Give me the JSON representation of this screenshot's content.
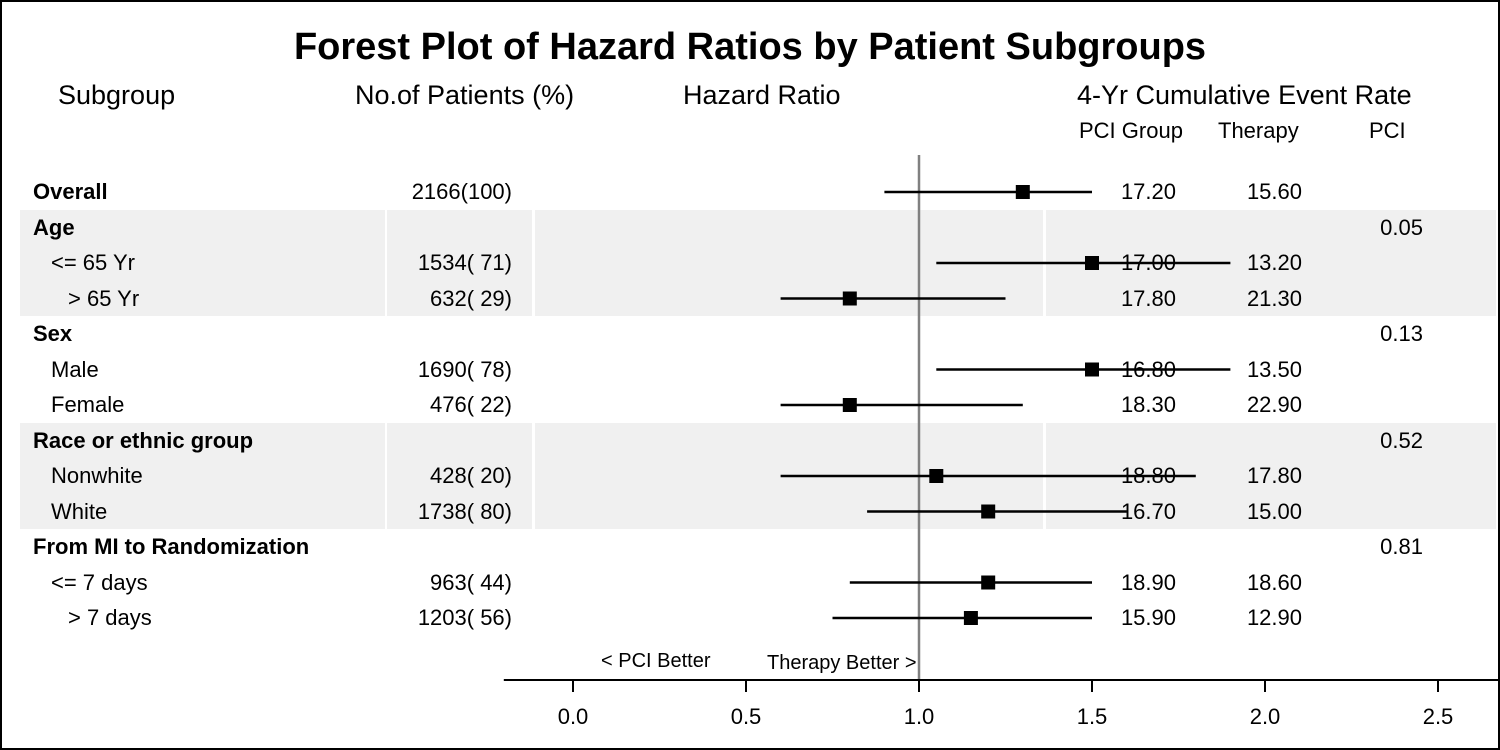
{
  "title": "Forest Plot of Hazard Ratios by Patient Subgroups",
  "headers": {
    "subgroup": "Subgroup",
    "patients": "No.of Patients (%)",
    "hazard_ratio": "Hazard Ratio",
    "event_rate": "4-Yr Cumulative Event Rate",
    "pci_group": "PCI Group",
    "therapy": "Therapy",
    "pci": "PCI"
  },
  "chart_data": {
    "type": "forest",
    "title": "Forest Plot of Hazard Ratios by Patient Subgroups",
    "xlabel": "",
    "ylabel": "",
    "xlim": [
      -0.2,
      2.75
    ],
    "xticks": [
      "0.0",
      "0.5",
      "1.0",
      "1.5",
      "2.0",
      "2.5"
    ],
    "reference_line": 1.0,
    "annotations": {
      "left": "< PCI Better",
      "right": "Therapy Better >"
    },
    "rows": [
      {
        "label": "Overall",
        "indent": 0,
        "bold": true,
        "band": false,
        "patients": "2166(100)",
        "hr": 1.3,
        "low": 0.9,
        "high": 1.5,
        "pci_group": "17.20",
        "therapy": "15.60",
        "pci": ""
      },
      {
        "label": "Age",
        "indent": 0,
        "bold": true,
        "band": true,
        "patients": "",
        "hr": null,
        "low": null,
        "high": null,
        "pci_group": "",
        "therapy": "",
        "pci": "0.05"
      },
      {
        "label": "<= 65 Yr",
        "indent": 1,
        "bold": false,
        "band": true,
        "patients": "1534( 71)",
        "hr": 1.5,
        "low": 1.05,
        "high": 1.9,
        "pci_group": "17.00",
        "therapy": "13.20",
        "pci": ""
      },
      {
        "label": "> 65 Yr",
        "indent": 2,
        "bold": false,
        "band": true,
        "patients": "632( 29)",
        "hr": 0.8,
        "low": 0.6,
        "high": 1.25,
        "pci_group": "17.80",
        "therapy": "21.30",
        "pci": ""
      },
      {
        "label": "Sex",
        "indent": 0,
        "bold": true,
        "band": false,
        "patients": "",
        "hr": null,
        "low": null,
        "high": null,
        "pci_group": "",
        "therapy": "",
        "pci": "0.13"
      },
      {
        "label": "Male",
        "indent": 1,
        "bold": false,
        "band": false,
        "patients": "1690( 78)",
        "hr": 1.5,
        "low": 1.05,
        "high": 1.9,
        "pci_group": "16.80",
        "therapy": "13.50",
        "pci": ""
      },
      {
        "label": "Female",
        "indent": 1,
        "bold": false,
        "band": false,
        "patients": "476( 22)",
        "hr": 0.8,
        "low": 0.6,
        "high": 1.3,
        "pci_group": "18.30",
        "therapy": "22.90",
        "pci": ""
      },
      {
        "label": "Race or ethnic group",
        "indent": 0,
        "bold": true,
        "band": true,
        "patients": "",
        "hr": null,
        "low": null,
        "high": null,
        "pci_group": "",
        "therapy": "",
        "pci": "0.52"
      },
      {
        "label": "Nonwhite",
        "indent": 1,
        "bold": false,
        "band": true,
        "patients": "428( 20)",
        "hr": 1.05,
        "low": 0.6,
        "high": 1.8,
        "pci_group": "18.80",
        "therapy": "17.80",
        "pci": ""
      },
      {
        "label": "White",
        "indent": 1,
        "bold": false,
        "band": true,
        "patients": "1738( 80)",
        "hr": 1.2,
        "low": 0.85,
        "high": 1.6,
        "pci_group": "16.70",
        "therapy": "15.00",
        "pci": ""
      },
      {
        "label": "From MI to Randomization",
        "indent": 0,
        "bold": true,
        "band": false,
        "patients": "",
        "hr": null,
        "low": null,
        "high": null,
        "pci_group": "",
        "therapy": "",
        "pci": "0.81"
      },
      {
        "label": "<= 7 days",
        "indent": 1,
        "bold": false,
        "band": false,
        "patients": "963( 44)",
        "hr": 1.2,
        "low": 0.8,
        "high": 1.5,
        "pci_group": "18.90",
        "therapy": "18.60",
        "pci": ""
      },
      {
        "label": "> 7 days",
        "indent": 2,
        "bold": false,
        "band": false,
        "patients": "1203( 56)",
        "hr": 1.15,
        "low": 0.75,
        "high": 1.5,
        "pci_group": "15.90",
        "therapy": "12.90",
        "pci": ""
      }
    ]
  }
}
